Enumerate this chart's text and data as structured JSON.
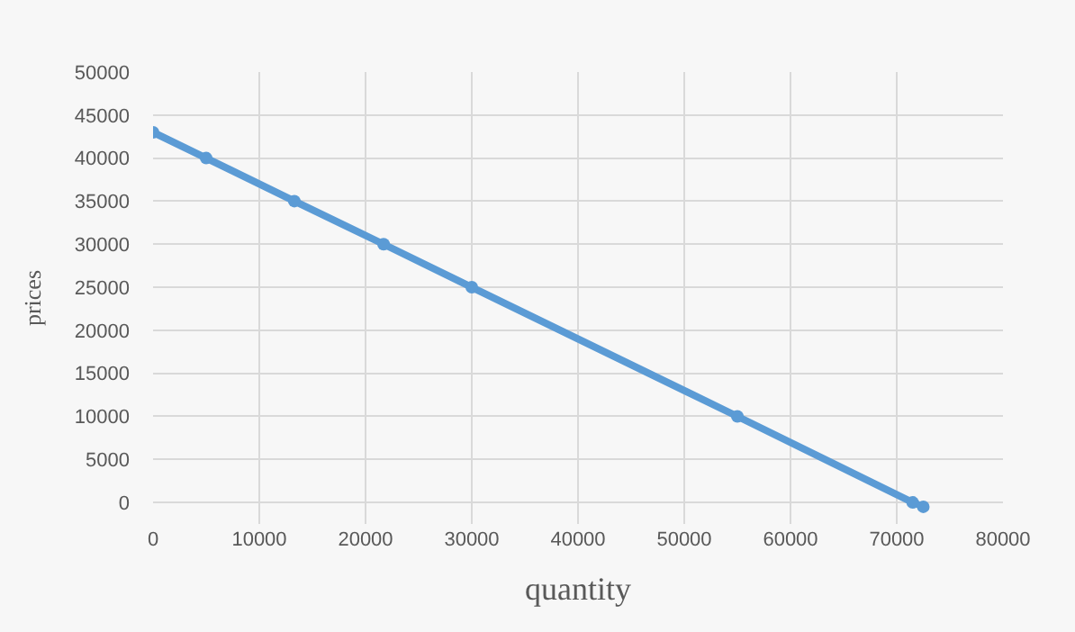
{
  "chart_data": {
    "type": "line",
    "xlabel": "quantity",
    "ylabel": "prices",
    "x": [
      0,
      5000,
      13300,
      21700,
      30000,
      55000,
      71500,
      72500
    ],
    "series": [
      {
        "color": "#5b9bd5",
        "values": [
          43000,
          40000,
          35000,
          30000,
          25000,
          10000,
          0,
          -500
        ]
      }
    ],
    "xlim": [
      0,
      80000
    ],
    "xticks": [
      0,
      10000,
      20000,
      30000,
      40000,
      50000,
      60000,
      70000,
      80000
    ],
    "ylim": [
      -2500,
      50000
    ],
    "yticks": [
      0,
      5000,
      10000,
      15000,
      20000,
      25000,
      30000,
      35000,
      40000,
      45000,
      50000
    ],
    "grid": true,
    "marker": "circle",
    "line_style": "solid"
  }
}
